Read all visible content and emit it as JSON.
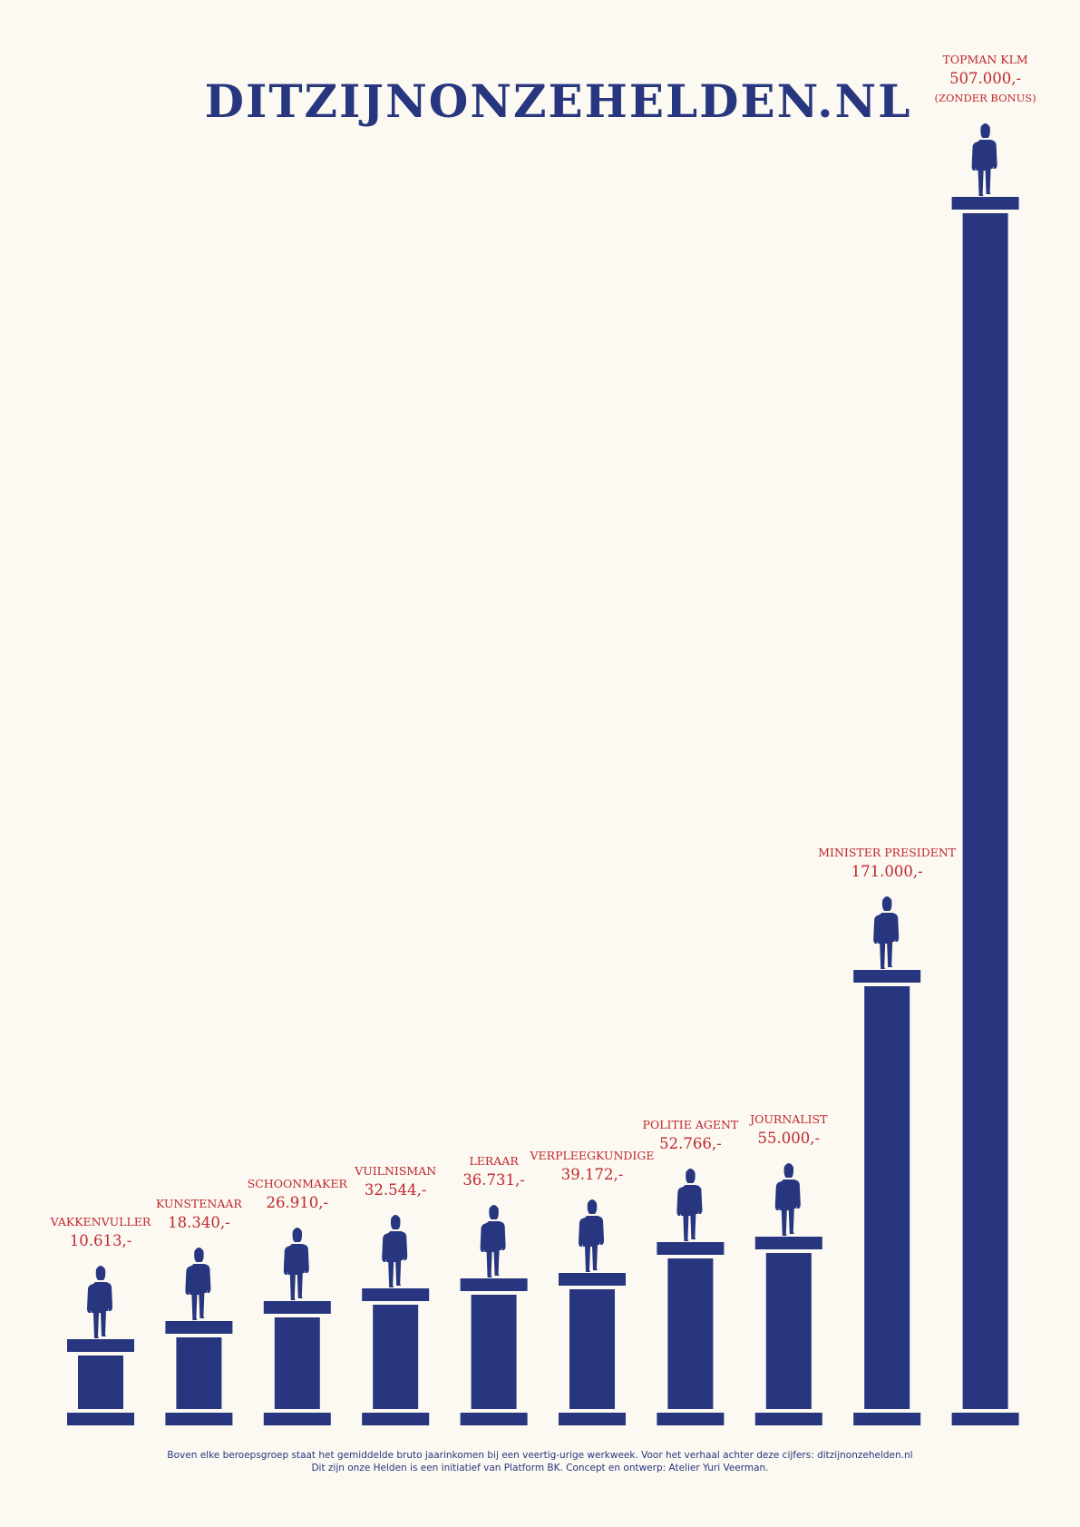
{
  "site_title": "DITZIJNONZEHELDEN.NL",
  "colors": {
    "background": "#fbf9f1",
    "column": "#27367f",
    "label": "#c0272d"
  },
  "chart_data": {
    "type": "bar",
    "title": "DITZIJNONZEHELDEN.NL",
    "categories": [
      "VAKKENVULLER",
      "KUNSTENAAR",
      "SCHOONMAKER",
      "VUILNISMAN",
      "LERAAR",
      "VERPLEEGKUNDIGE",
      "POLITIE AGENT",
      "JOURNALIST",
      "MINISTER PRESIDENT",
      "TOPMAN KLM"
    ],
    "values": [
      10613,
      18340,
      26910,
      32544,
      36731,
      39172,
      52766,
      55000,
      171000,
      507000
    ],
    "value_labels": [
      "10.613,-",
      "18.340,-",
      "26.910,-",
      "32.544,-",
      "36.731,-",
      "39.172,-",
      "52.766,-",
      "55.000,-",
      "171.000,-",
      "507.000,-"
    ],
    "notes": [
      "",
      "",
      "",
      "",
      "",
      "",
      "",
      "",
      "",
      "(ZONDER BONUS)"
    ],
    "mark_style": "column-with-pedestal-and-figure",
    "xlabel": "",
    "ylabel": ""
  },
  "footer": {
    "line1": "Boven elke beroepsgroep staat het gemiddelde bruto jaarinkomen bij een veertig-urige werkweek. Voor het verhaal achter deze cijfers: ditzijnonzehelden.nl",
    "line2": "Dit zijn onze Helden is een initiatief van Platform BK. Concept en ontwerp: Atelier Yuri Veerman."
  }
}
